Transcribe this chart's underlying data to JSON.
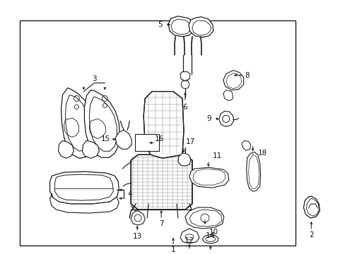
{
  "fig_width": 4.89,
  "fig_height": 3.6,
  "dpi": 100,
  "bg": "#ffffff",
  "lc": "#1a1a1a",
  "border": [
    0.055,
    0.08,
    0.855,
    0.97
  ],
  "label_fontsize": 7.5,
  "label_color": "#111111"
}
